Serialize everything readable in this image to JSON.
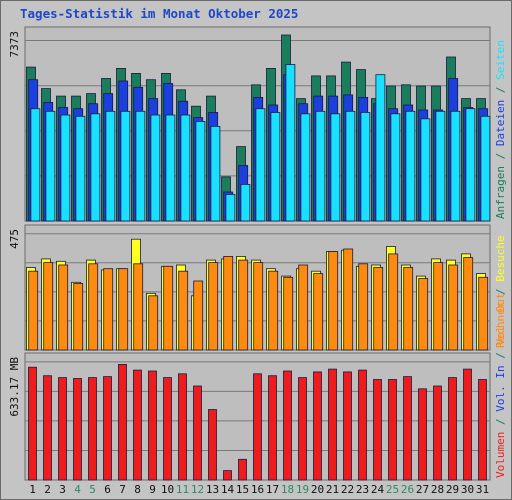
{
  "title": "Tages-Statistik im Monat Oktober 2025",
  "colors": {
    "background": "#c4c4c4",
    "plot_background": "#bebebe",
    "anfragen": "#1a7d5c",
    "dateien": "#1c3fe0",
    "seiten": "#19e0ff",
    "besuche": "#ffff20",
    "rechner": "#ff8a10",
    "volumen": "#ee1c1c",
    "weekday_label": "#111111",
    "weekend_label": "#2f8a60",
    "title": "#1f47c9"
  },
  "chart_data": [
    {
      "type": "bar",
      "panel": "requests",
      "y_max_label": "7373",
      "ylim": [
        0,
        7373
      ],
      "grid": true,
      "categories": [
        "1",
        "2",
        "3",
        "4",
        "5",
        "6",
        "7",
        "8",
        "9",
        "10",
        "11",
        "12",
        "13",
        "14",
        "15",
        "16",
        "17",
        "18",
        "19",
        "20",
        "21",
        "22",
        "23",
        "24",
        "25",
        "26",
        "27",
        "28",
        "29",
        "30",
        "31"
      ],
      "right_labels": [
        {
          "text": "Anfragen",
          "color": "#1a7d5c"
        },
        {
          "text": " / ",
          "color": "#1a7d5c"
        },
        {
          "text": "Dateien",
          "color": "#1c3fe0"
        },
        {
          "text": " / ",
          "color": "#1a7d5c"
        },
        {
          "text": "Seiten",
          "color": "#19e0ff"
        }
      ],
      "series": [
        {
          "name": "Anfragen",
          "key": "anfragen",
          "values": [
            6100,
            5250,
            4950,
            4950,
            5050,
            5650,
            6050,
            5850,
            5600,
            5850,
            5200,
            4550,
            4950,
            1750,
            2950,
            5400,
            6050,
            7373,
            4850,
            5750,
            5750,
            6300,
            6000,
            4850,
            5350,
            5400,
            5350,
            5350,
            6500,
            4850,
            4850
          ]
        },
        {
          "name": "Dateien",
          "key": "dateien",
          "values": [
            5600,
            4700,
            4500,
            4450,
            4650,
            5050,
            5550,
            5300,
            4850,
            5450,
            4750,
            4100,
            4300,
            1150,
            2200,
            4900,
            4600,
            5800,
            4650,
            4950,
            4950,
            5000,
            4900,
            4650,
            4450,
            4600,
            4400,
            4400,
            5650,
            4500,
            4450
          ]
        },
        {
          "name": "Seiten",
          "key": "seiten",
          "values": [
            4450,
            4350,
            4200,
            4150,
            4250,
            4350,
            4350,
            4350,
            4200,
            4200,
            4200,
            3950,
            3750,
            1050,
            1450,
            4450,
            4300,
            6200,
            4250,
            4350,
            4250,
            4350,
            4300,
            5800,
            4250,
            4350,
            4050,
            4350,
            4350,
            4450,
            4150
          ]
        }
      ]
    },
    {
      "type": "bar",
      "panel": "visits",
      "y_max_label": "475",
      "ylim": [
        0,
        475
      ],
      "grid": true,
      "right_labels": [
        {
          "text": "Rechner",
          "color": "#ff8a10"
        },
        {
          "text": " / ",
          "color": "#1a7d5c"
        },
        {
          "text": "Besuche",
          "color": "#ffff20"
        }
      ],
      "series": [
        {
          "name": "Besuche",
          "key": "besuche",
          "values": [
            335,
            370,
            360,
            275,
            365,
            325,
            330,
            450,
            230,
            340,
            345,
            220,
            365,
            370,
            380,
            365,
            330,
            300,
            330,
            320,
            400,
            405,
            340,
            345,
            420,
            345,
            300,
            370,
            365,
            390,
            310
          ]
        },
        {
          "name": "Rechner",
          "key": "rechner",
          "values": [
            320,
            355,
            345,
            270,
            350,
            330,
            330,
            350,
            220,
            340,
            320,
            280,
            355,
            380,
            365,
            355,
            320,
            295,
            345,
            310,
            400,
            410,
            350,
            335,
            390,
            335,
            290,
            355,
            345,
            375,
            295
          ]
        }
      ]
    },
    {
      "type": "bar",
      "panel": "volume",
      "y_max_label": "633.17 MB",
      "ylim": [
        0,
        633.17
      ],
      "grid": true,
      "right_labels": [
        {
          "text": "Volumen",
          "color": "#ee1c1c"
        },
        {
          "text": " / ",
          "color": "#1a7d5c"
        },
        {
          "text": "Vol. In",
          "color": "#1c3fe0"
        },
        {
          "text": " / ",
          "color": "#1a7d5c"
        },
        {
          "text": "Vol. Out",
          "color": "#ff8a10"
        }
      ],
      "series": [
        {
          "name": "Volumen",
          "key": "volumen",
          "values": [
            600,
            555,
            545,
            540,
            545,
            550,
            615,
            585,
            580,
            545,
            565,
            500,
            375,
            50,
            110,
            565,
            555,
            580,
            545,
            575,
            590,
            575,
            585,
            535,
            535,
            550,
            485,
            500,
            545,
            590,
            535
          ]
        }
      ]
    }
  ],
  "weekend_days": [
    "4",
    "5",
    "11",
    "12",
    "18",
    "19",
    "25",
    "26"
  ]
}
